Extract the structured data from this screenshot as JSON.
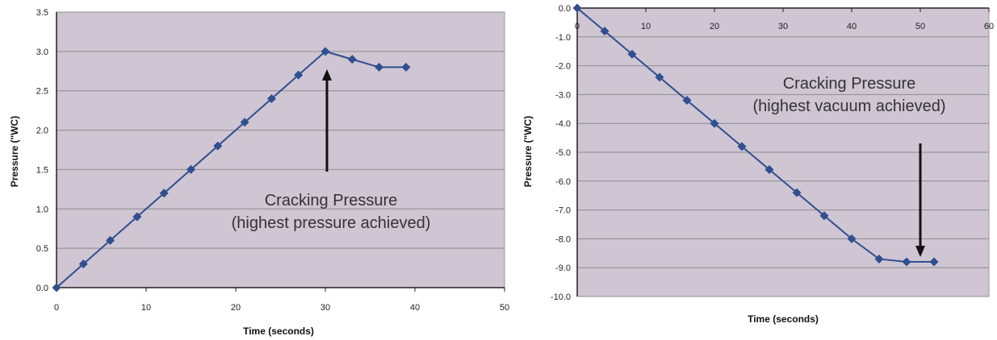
{
  "chart_data": [
    {
      "type": "line",
      "title": "",
      "xlabel": "Time (seconds)",
      "ylabel": "Pressure (\"WC)",
      "xlim": [
        0,
        50
      ],
      "ylim": [
        0.0,
        3.5
      ],
      "x_ticks": [
        "0",
        "10",
        "20",
        "30",
        "40",
        "50"
      ],
      "y_ticks": [
        "0.0",
        "0.5",
        "1.0",
        "1.5",
        "2.0",
        "2.5",
        "3.0",
        "3.5"
      ],
      "grid": true,
      "legend": "none",
      "series": [
        {
          "color": "#2f4f8f",
          "x": [
            0,
            3,
            6,
            9,
            12,
            15,
            18,
            21,
            24,
            27,
            30,
            33,
            36,
            39
          ],
          "y": [
            0.0,
            0.3,
            0.6,
            0.9,
            1.2,
            1.5,
            1.8,
            2.1,
            2.4,
            2.7,
            3.0,
            2.9,
            2.8,
            2.8
          ]
        }
      ],
      "annotation": {
        "line1": "Cracking Pressure",
        "line2": "(highest pressure achieved)",
        "arrow_direction": "up",
        "arrow_target": [
          30,
          3.0
        ]
      },
      "plot_bg": "#cfc5d3"
    },
    {
      "type": "line",
      "title": "",
      "xlabel": "Time (seconds)",
      "ylabel": "Pressure (\"WC)",
      "xlim": [
        0,
        60
      ],
      "ylim": [
        -10.0,
        0.0
      ],
      "x_ticks": [
        "0",
        "10",
        "20",
        "30",
        "40",
        "50",
        "60"
      ],
      "y_ticks": [
        "0.0",
        "-1.0",
        "-2.0",
        "-3.0",
        "-4.0",
        "-5.0",
        "-6.0",
        "-7.0",
        "-8.0",
        "-9.0",
        "-10.0"
      ],
      "grid": true,
      "legend": "none",
      "series": [
        {
          "color": "#2f4f8f",
          "x": [
            0,
            4,
            8,
            12,
            16,
            20,
            24,
            28,
            32,
            36,
            40,
            44,
            48,
            52
          ],
          "y": [
            0.0,
            -0.8,
            -1.6,
            -2.4,
            -3.2,
            -4.0,
            -4.8,
            -5.6,
            -6.4,
            -7.2,
            -8.0,
            -8.7,
            -8.8,
            -8.8
          ]
        }
      ],
      "annotation": {
        "line1": "Cracking Pressure",
        "line2": "(highest vacuum achieved)",
        "arrow_direction": "down",
        "arrow_target": [
          50,
          -8.8
        ]
      },
      "plot_bg": "#cfc5d3"
    }
  ]
}
